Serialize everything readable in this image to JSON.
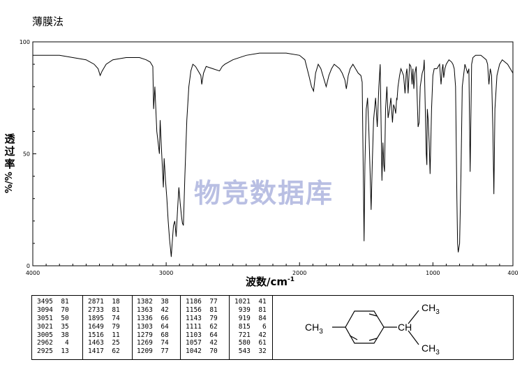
{
  "method": "薄膜法",
  "watermark": "物竞数据库",
  "chart_data": {
    "type": "line",
    "ylabel_chars": [
      "透",
      "过",
      "率"
    ],
    "ylabel_unit": "%/%",
    "xlabel": "波数/cm",
    "xlabel_sup": "-1",
    "xlim": [
      4000,
      400
    ],
    "ylim": [
      0,
      100
    ],
    "xticks": [
      4000,
      3000,
      2000,
      1000,
      400
    ],
    "xtick_labels": [
      "4000",
      "3000",
      "2000",
      "1000",
      "400"
    ],
    "yticks": [
      0,
      50,
      100
    ],
    "ytick_labels": [
      "0",
      "50",
      "100"
    ],
    "series": [
      {
        "x": [
          4000,
          3900,
          3800,
          3700,
          3600,
          3540,
          3510,
          3495,
          3480,
          3450,
          3400,
          3300,
          3200,
          3150,
          3120,
          3100,
          3094,
          3085,
          3070,
          3060,
          3051,
          3045,
          3035,
          3021,
          3015,
          3005,
          2995,
          2985,
          2975,
          2968,
          2962,
          2955,
          2945,
          2935,
          2925,
          2915,
          2905,
          2895,
          2885,
          2878,
          2871,
          2860,
          2845,
          2830,
          2815,
          2800,
          2780,
          2760,
          2740,
          2733,
          2720,
          2700,
          2650,
          2600,
          2580,
          2560,
          2500,
          2400,
          2300,
          2200,
          2100,
          2000,
          1960,
          1930,
          1910,
          1895,
          1880,
          1860,
          1840,
          1820,
          1800,
          1780,
          1760,
          1740,
          1720,
          1700,
          1680,
          1660,
          1649,
          1635,
          1620,
          1600,
          1580,
          1560,
          1540,
          1530,
          1522,
          1516,
          1510,
          1500,
          1495,
          1490,
          1480,
          1470,
          1463,
          1455,
          1445,
          1430,
          1417,
          1405,
          1395,
          1382,
          1375,
          1368,
          1363,
          1355,
          1345,
          1336,
          1325,
          1315,
          1303,
          1295,
          1285,
          1279,
          1272,
          1269,
          1262,
          1250,
          1240,
          1220,
          1209,
          1200,
          1195,
          1186,
          1175,
          1165,
          1156,
          1150,
          1143,
          1135,
          1125,
          1111,
          1103,
          1095,
          1080,
          1070,
          1065,
          1057,
          1050,
          1045,
          1042,
          1035,
          1028,
          1021,
          1010,
          1000,
          990,
          970,
          950,
          939,
          930,
          925,
          919,
          910,
          900,
          880,
          860,
          850,
          840,
          830,
          820,
          815,
          810,
          800,
          790,
          780,
          760,
          740,
          730,
          721,
          710,
          700,
          680,
          660,
          640,
          620,
          600,
          590,
          580,
          570,
          560,
          550,
          543,
          535,
          520,
          500,
          480,
          460,
          440,
          420,
          400
        ],
        "y": [
          94,
          94,
          94,
          93,
          92,
          90,
          88,
          85,
          87,
          90,
          92,
          93,
          93,
          92,
          91,
          89,
          70,
          80,
          60,
          55,
          50,
          65,
          52,
          35,
          48,
          38,
          30,
          20,
          12,
          8,
          4,
          10,
          18,
          20,
          13,
          25,
          35,
          28,
          22,
          19,
          18,
          40,
          65,
          80,
          87,
          90,
          89,
          87,
          85,
          81,
          86,
          89,
          88,
          87,
          89,
          90,
          92,
          94,
          95,
          95,
          95,
          94,
          92,
          85,
          80,
          78,
          86,
          90,
          88,
          84,
          80,
          85,
          88,
          90,
          89,
          88,
          86,
          83,
          79,
          85,
          88,
          90,
          88,
          86,
          85,
          82,
          40,
          11,
          45,
          70,
          72,
          75,
          60,
          40,
          25,
          45,
          65,
          75,
          62,
          80,
          90,
          38,
          55,
          45,
          42,
          70,
          80,
          66,
          70,
          75,
          64,
          72,
          70,
          68,
          75,
          74,
          80,
          85,
          88,
          85,
          77,
          86,
          88,
          77,
          90,
          89,
          81,
          88,
          79,
          86,
          89,
          62,
          64,
          80,
          86,
          88,
          92,
          70,
          50,
          45,
          70,
          65,
          55,
          41,
          70,
          85,
          88,
          88,
          90,
          81,
          88,
          90,
          84,
          88,
          90,
          92,
          91,
          90,
          88,
          80,
          30,
          10,
          6,
          10,
          40,
          80,
          90,
          86,
          88,
          42,
          90,
          93,
          94,
          94,
          94,
          93,
          92,
          90,
          81,
          88,
          85,
          60,
          32,
          70,
          85,
          90,
          92,
          91,
          90,
          88,
          86
        ]
      }
    ]
  }
}
